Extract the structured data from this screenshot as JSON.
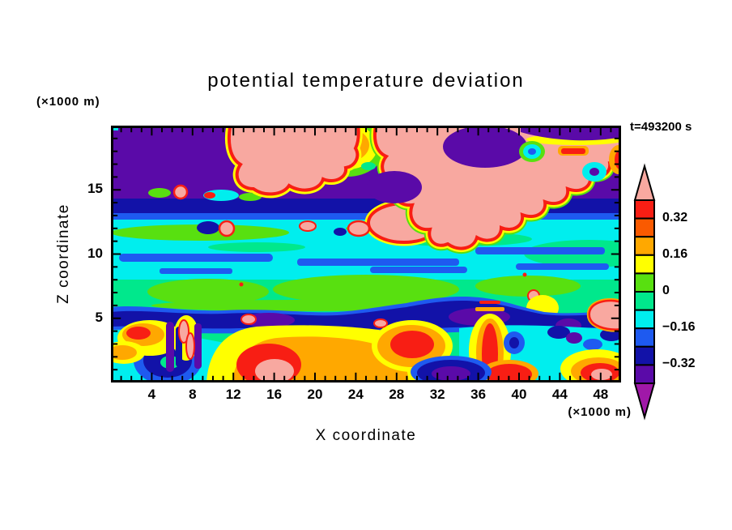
{
  "window": {
    "background": "#FFFFFF"
  },
  "figure": {
    "title": "potential temperature deviation",
    "time_annotation": "t=493200 s",
    "y_axis_units": "(×1000 m)",
    "x_axis_units": "(×1000 m)",
    "x_axis_label": "X coordinate",
    "y_axis_label": "Z coordinate"
  },
  "palette": {
    "pink": "#F8A8A0",
    "red": "#F81E14",
    "orangered": "#FA5A00",
    "orange": "#FFA800",
    "yellow": "#FFFF00",
    "chartreuse": "#58E010",
    "springgreen": "#00E88C",
    "cyan": "#00EEEE",
    "blue": "#1E5AF0",
    "navy": "#1212A8",
    "indigo": "#5A0AA8",
    "magenta": "#A018A8",
    "frame": "#000000",
    "background": "#FFFFFF"
  },
  "chart_data": {
    "type": "heatmap",
    "subtype": "filled-contour-cross-section",
    "title": "potential temperature deviation",
    "time": "t=493200 s",
    "xlabel": "X coordinate",
    "ylabel": "Z coordinate",
    "x_units": "(×1000 m)",
    "y_units": "(×1000 m)",
    "xlim": [
      0,
      50
    ],
    "ylim": [
      0,
      20
    ],
    "x_major_ticks": [
      4,
      8,
      12,
      16,
      20,
      24,
      28,
      32,
      36,
      40,
      44,
      48
    ],
    "x_minor_step": 1,
    "y_major_ticks": [
      5,
      10,
      15
    ],
    "y_minor_step": 1,
    "grid": false,
    "colorbar": {
      "position": "right",
      "over_arrow": {
        "color_key": "pink",
        "range": "> 0.40"
      },
      "under_arrow": {
        "color_key": "magenta",
        "range": "< -0.40"
      },
      "segments": [
        {
          "color_key": "red",
          "from": 0.32,
          "to": 0.4
        },
        {
          "color_key": "orangered",
          "from": 0.24,
          "to": 0.32
        },
        {
          "color_key": "orange",
          "from": 0.16,
          "to": 0.24
        },
        {
          "color_key": "yellow",
          "from": 0.08,
          "to": 0.16
        },
        {
          "color_key": "chartreuse",
          "from": 0.0,
          "to": 0.08
        },
        {
          "color_key": "springgreen",
          "from": -0.08,
          "to": 0.0
        },
        {
          "color_key": "cyan",
          "from": -0.16,
          "to": -0.08
        },
        {
          "color_key": "blue",
          "from": -0.24,
          "to": -0.16
        },
        {
          "color_key": "navy",
          "from": -0.32,
          "to": -0.24
        },
        {
          "color_key": "indigo",
          "from": -0.4,
          "to": -0.32
        }
      ],
      "tick_labels": [
        {
          "text": "0.32",
          "after_segment": 0
        },
        {
          "text": "0.16",
          "after_segment": 2
        },
        {
          "text": "0",
          "after_segment": 4
        },
        {
          "text": "−0.16",
          "after_segment": 6
        },
        {
          "text": "−0.32",
          "after_segment": 8
        }
      ]
    },
    "field_regions": [
      {
        "z_range_km": [
          14.5,
          20
        ],
        "value_range": [
          "< -0.32",
          "> 0.40"
        ],
        "description": "stratosphere band: strong negative (indigo/navy) background with large strong-positive pink wave clouds rimmed red/orange/yellow, small cyan-blue holes inside"
      },
      {
        "z_range_km": [
          13.5,
          14.5
        ],
        "value_range": [
          "-0.32 to -0.24"
        ],
        "description": "continuous navy band across full width"
      },
      {
        "z_range_km": [
          10.5,
          13.5
        ],
        "value_range": [
          "-0.16 to -0.08"
        ],
        "description": "cyan band with horizontal blue streaks and a few small positive pink patches near x=10-23 and a pink arm near x=23-29"
      },
      {
        "z_range_km": [
          5.5,
          10.5
        ],
        "value_range": [
          "-0.08 to 0.08"
        ],
        "description": "near-zero layer: spring-green with broad chartreuse patches, tiny red/pink specks"
      },
      {
        "z_range_km": [
          4.5,
          5.5
        ],
        "value_range": [
          "-0.32 to -0.24"
        ],
        "description": "wavy navy band with indigo mounds and a pink intrusion at right edge"
      },
      {
        "z_range_km": [
          0,
          4.5
        ],
        "value_range": [
          "< -0.40",
          "> 0.40"
        ],
        "description": "boundary layer turbulence: yellow/orange/red thermals with pink cores (x=7-20, x=23-28, x=29-31, x=35-39), navy/indigo pools and cyan swirls over green"
      }
    ]
  }
}
